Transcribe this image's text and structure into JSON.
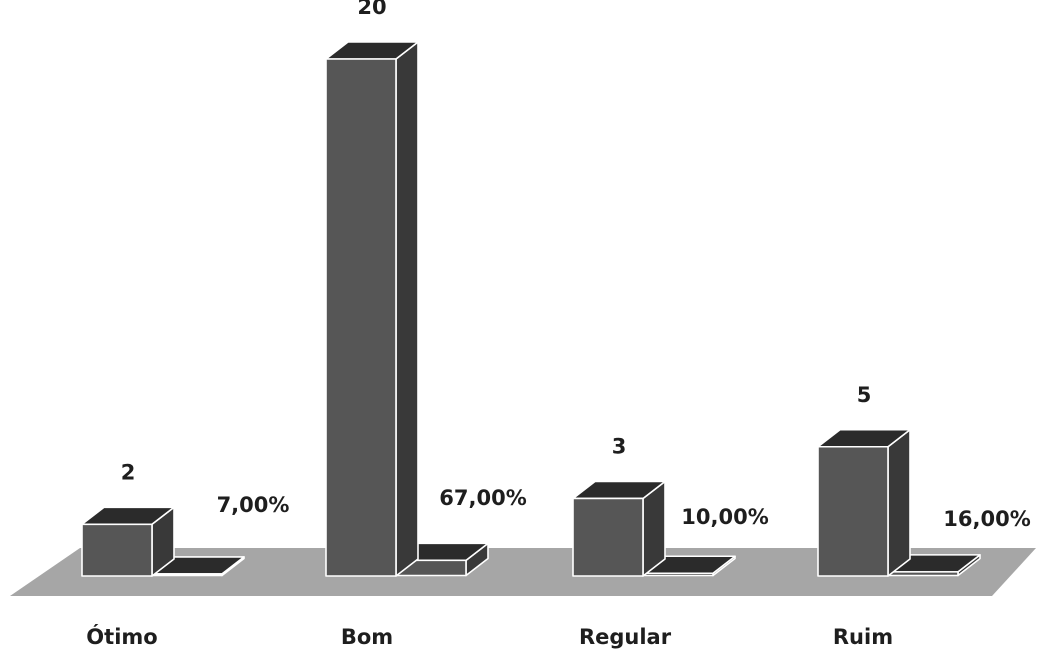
{
  "chart_data": {
    "type": "bar",
    "style": "3d-column",
    "categories": [
      "Ótimo",
      "Bom",
      "Regular",
      "Ruim"
    ],
    "series": [
      {
        "values": [
          2,
          20,
          3,
          5
        ],
        "labels": [
          "2",
          "20",
          "3",
          "5"
        ]
      },
      {
        "values": [
          7,
          67,
          10,
          16
        ],
        "labels": [
          "7,00%",
          "67,00%",
          "10,00%",
          "16,00%"
        ]
      }
    ],
    "title": "",
    "xlabel": "",
    "ylabel": "",
    "grid": false,
    "legend": "none",
    "colors": {
      "bar_front": "#565656",
      "bar_top": "#2b2b2b",
      "bar_side": "#393939",
      "floor": "#a6a6a6",
      "edge": "#ffffff"
    }
  }
}
